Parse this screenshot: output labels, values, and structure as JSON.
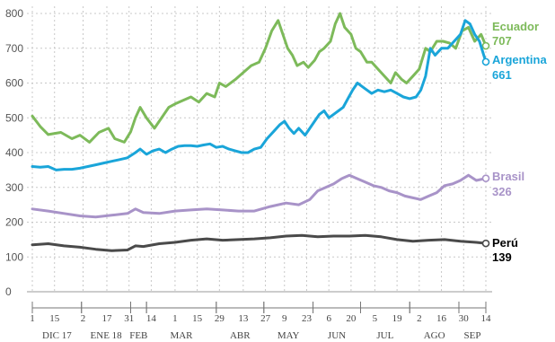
{
  "chart_data": {
    "type": "line",
    "xlabel": "",
    "ylabel": "",
    "ylim": [
      0,
      800
    ],
    "y_ticks": [
      0,
      100,
      200,
      300,
      400,
      500,
      600,
      700,
      800
    ],
    "grid": true,
    "x_ticks": [
      {
        "label": "1",
        "t": 0
      },
      {
        "label": "15",
        "t": 14
      },
      {
        "label": "2",
        "t": 32
      },
      {
        "label": "17",
        "t": 47
      },
      {
        "label": "31",
        "t": 61
      },
      {
        "label": "14",
        "t": 75
      },
      {
        "label": "1",
        "t": 90
      },
      {
        "label": "15",
        "t": 104
      },
      {
        "label": "29",
        "t": 118
      },
      {
        "label": "13",
        "t": 133
      },
      {
        "label": "27",
        "t": 147
      },
      {
        "label": "9",
        "t": 159
      },
      {
        "label": "23",
        "t": 173
      },
      {
        "label": "6",
        "t": 187
      },
      {
        "label": "20",
        "t": 201
      },
      {
        "label": "5",
        "t": 216
      },
      {
        "label": "19",
        "t": 230
      },
      {
        "label": "2",
        "t": 244
      },
      {
        "label": "16",
        "t": 258
      },
      {
        "label": "30",
        "t": 272
      },
      {
        "label": "14",
        "t": 286
      }
    ],
    "months": [
      {
        "label": "DIC 17",
        "start": 0,
        "end": 31
      },
      {
        "label": "ENE 18",
        "start": 31,
        "end": 62
      },
      {
        "label": "FEB",
        "start": 62,
        "end": 72
      },
      {
        "label": "MAR",
        "start": 72,
        "end": 116
      },
      {
        "label": "ABR",
        "start": 116,
        "end": 146
      },
      {
        "label": "MAY",
        "start": 146,
        "end": 177
      },
      {
        "label": "JUN",
        "start": 177,
        "end": 207
      },
      {
        "label": "JUL",
        "start": 207,
        "end": 238
      },
      {
        "label": "AGO",
        "start": 238,
        "end": 269
      },
      {
        "label": "SEP",
        "start": 269,
        "end": 286
      }
    ],
    "series": [
      {
        "name": "Ecuador",
        "last_value": "707",
        "color": "#7dba5a",
        "points": [
          [
            0,
            505
          ],
          [
            5,
            475
          ],
          [
            10,
            452
          ],
          [
            18,
            458
          ],
          [
            25,
            440
          ],
          [
            30,
            450
          ],
          [
            36,
            430
          ],
          [
            42,
            458
          ],
          [
            48,
            470
          ],
          [
            52,
            440
          ],
          [
            58,
            430
          ],
          [
            62,
            460
          ],
          [
            65,
            500
          ],
          [
            68,
            530
          ],
          [
            72,
            500
          ],
          [
            77,
            470
          ],
          [
            80,
            490
          ],
          [
            86,
            530
          ],
          [
            90,
            540
          ],
          [
            95,
            550
          ],
          [
            100,
            560
          ],
          [
            105,
            545
          ],
          [
            110,
            570
          ],
          [
            115,
            560
          ],
          [
            118,
            600
          ],
          [
            122,
            590
          ],
          [
            128,
            610
          ],
          [
            133,
            630
          ],
          [
            138,
            650
          ],
          [
            143,
            660
          ],
          [
            147,
            700
          ],
          [
            151,
            750
          ],
          [
            155,
            780
          ],
          [
            158,
            740
          ],
          [
            161,
            700
          ],
          [
            164,
            680
          ],
          [
            167,
            650
          ],
          [
            171,
            660
          ],
          [
            174,
            645
          ],
          [
            178,
            665
          ],
          [
            181,
            690
          ],
          [
            184,
            700
          ],
          [
            188,
            720
          ],
          [
            191,
            770
          ],
          [
            194,
            800
          ],
          [
            197,
            760
          ],
          [
            201,
            740
          ],
          [
            204,
            700
          ],
          [
            207,
            690
          ],
          [
            211,
            660
          ],
          [
            214,
            660
          ],
          [
            218,
            640
          ],
          [
            222,
            620
          ],
          [
            226,
            600
          ],
          [
            229,
            630
          ],
          [
            233,
            610
          ],
          [
            236,
            600
          ],
          [
            240,
            620
          ],
          [
            244,
            640
          ],
          [
            248,
            700
          ],
          [
            251,
            690
          ],
          [
            255,
            720
          ],
          [
            259,
            720
          ],
          [
            263,
            715
          ],
          [
            267,
            700
          ],
          [
            271,
            750
          ],
          [
            275,
            760
          ],
          [
            279,
            720
          ],
          [
            283,
            740
          ],
          [
            286,
            707
          ]
        ]
      },
      {
        "name": "Argentina",
        "last_value": "661",
        "color": "#1aa5d9",
        "points": [
          [
            0,
            360
          ],
          [
            5,
            358
          ],
          [
            10,
            360
          ],
          [
            15,
            350
          ],
          [
            20,
            352
          ],
          [
            25,
            352
          ],
          [
            30,
            355
          ],
          [
            35,
            360
          ],
          [
            40,
            365
          ],
          [
            45,
            370
          ],
          [
            50,
            375
          ],
          [
            55,
            380
          ],
          [
            60,
            385
          ],
          [
            65,
            400
          ],
          [
            68,
            410
          ],
          [
            72,
            395
          ],
          [
            76,
            405
          ],
          [
            80,
            410
          ],
          [
            84,
            400
          ],
          [
            88,
            410
          ],
          [
            92,
            418
          ],
          [
            96,
            420
          ],
          [
            100,
            420
          ],
          [
            104,
            418
          ],
          [
            108,
            422
          ],
          [
            112,
            425
          ],
          [
            116,
            415
          ],
          [
            120,
            418
          ],
          [
            124,
            410
          ],
          [
            128,
            405
          ],
          [
            132,
            400
          ],
          [
            136,
            400
          ],
          [
            140,
            410
          ],
          [
            144,
            415
          ],
          [
            148,
            440
          ],
          [
            152,
            460
          ],
          [
            156,
            480
          ],
          [
            159,
            490
          ],
          [
            162,
            470
          ],
          [
            165,
            455
          ],
          [
            168,
            470
          ],
          [
            172,
            450
          ],
          [
            175,
            470
          ],
          [
            178,
            490
          ],
          [
            181,
            510
          ],
          [
            184,
            520
          ],
          [
            187,
            500
          ],
          [
            190,
            510
          ],
          [
            193,
            520
          ],
          [
            196,
            530
          ],
          [
            199,
            555
          ],
          [
            202,
            580
          ],
          [
            205,
            600
          ],
          [
            208,
            590
          ],
          [
            211,
            580
          ],
          [
            214,
            570
          ],
          [
            218,
            580
          ],
          [
            222,
            575
          ],
          [
            226,
            580
          ],
          [
            230,
            570
          ],
          [
            234,
            560
          ],
          [
            238,
            555
          ],
          [
            242,
            560
          ],
          [
            245,
            580
          ],
          [
            248,
            620
          ],
          [
            251,
            700
          ],
          [
            254,
            680
          ],
          [
            258,
            700
          ],
          [
            262,
            700
          ],
          [
            266,
            720
          ],
          [
            270,
            740
          ],
          [
            273,
            780
          ],
          [
            276,
            770
          ],
          [
            279,
            740
          ],
          [
            282,
            720
          ],
          [
            286,
            661
          ]
        ]
      },
      {
        "name": "Brasil",
        "last_value": "326",
        "color": "#a893c8",
        "points": [
          [
            0,
            238
          ],
          [
            10,
            232
          ],
          [
            20,
            225
          ],
          [
            30,
            218
          ],
          [
            40,
            215
          ],
          [
            50,
            220
          ],
          [
            60,
            225
          ],
          [
            65,
            238
          ],
          [
            70,
            228
          ],
          [
            80,
            225
          ],
          [
            90,
            232
          ],
          [
            100,
            235
          ],
          [
            110,
            238
          ],
          [
            120,
            235
          ],
          [
            130,
            232
          ],
          [
            140,
            232
          ],
          [
            150,
            245
          ],
          [
            160,
            255
          ],
          [
            168,
            250
          ],
          [
            175,
            265
          ],
          [
            180,
            290
          ],
          [
            185,
            300
          ],
          [
            190,
            310
          ],
          [
            195,
            325
          ],
          [
            200,
            335
          ],
          [
            205,
            325
          ],
          [
            210,
            315
          ],
          [
            215,
            305
          ],
          [
            220,
            300
          ],
          [
            225,
            290
          ],
          [
            230,
            285
          ],
          [
            235,
            275
          ],
          [
            240,
            270
          ],
          [
            245,
            265
          ],
          [
            250,
            275
          ],
          [
            255,
            285
          ],
          [
            260,
            305
          ],
          [
            265,
            310
          ],
          [
            270,
            320
          ],
          [
            275,
            335
          ],
          [
            280,
            320
          ],
          [
            286,
            326
          ]
        ]
      },
      {
        "name": "Perú",
        "last_value": "139",
        "color": "#4a4a4a",
        "points": [
          [
            0,
            135
          ],
          [
            10,
            138
          ],
          [
            20,
            132
          ],
          [
            30,
            128
          ],
          [
            40,
            122
          ],
          [
            50,
            118
          ],
          [
            60,
            120
          ],
          [
            65,
            132
          ],
          [
            70,
            130
          ],
          [
            80,
            138
          ],
          [
            90,
            142
          ],
          [
            100,
            148
          ],
          [
            110,
            152
          ],
          [
            120,
            148
          ],
          [
            130,
            150
          ],
          [
            140,
            152
          ],
          [
            150,
            155
          ],
          [
            160,
            160
          ],
          [
            170,
            162
          ],
          [
            180,
            158
          ],
          [
            190,
            160
          ],
          [
            200,
            160
          ],
          [
            210,
            162
          ],
          [
            220,
            158
          ],
          [
            230,
            150
          ],
          [
            240,
            145
          ],
          [
            250,
            148
          ],
          [
            260,
            150
          ],
          [
            270,
            145
          ],
          [
            280,
            142
          ],
          [
            286,
            139
          ]
        ]
      }
    ]
  }
}
